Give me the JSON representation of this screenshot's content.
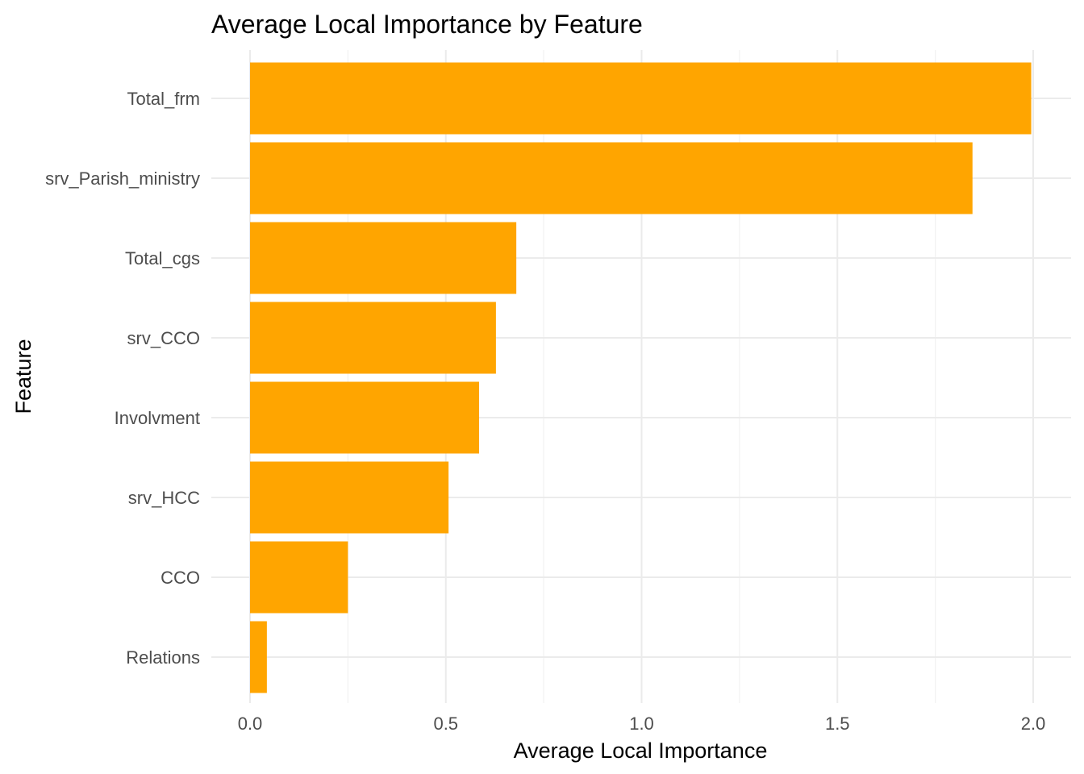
{
  "chart_data": {
    "type": "bar",
    "orientation": "horizontal",
    "title": "Average Local Importance by Feature",
    "xlabel": "Average Local Importance",
    "ylabel": "Feature",
    "categories": [
      "Total_frm",
      "srv_Parish_ministry",
      "Total_cgs",
      "srv_CCO",
      "Involvment",
      "srv_HCC",
      "CCO",
      "Relations"
    ],
    "values": [
      1.995,
      1.845,
      0.68,
      0.628,
      0.585,
      0.507,
      0.25,
      0.043
    ],
    "xlim": [
      0,
      2.0
    ],
    "xticks": [
      0.0,
      0.5,
      1.0,
      1.5,
      2.0
    ],
    "xtick_labels": [
      "0.0",
      "0.5",
      "1.0",
      "1.5",
      "2.0"
    ],
    "bar_color": "#ffa500",
    "grid": true,
    "legend": "none"
  }
}
